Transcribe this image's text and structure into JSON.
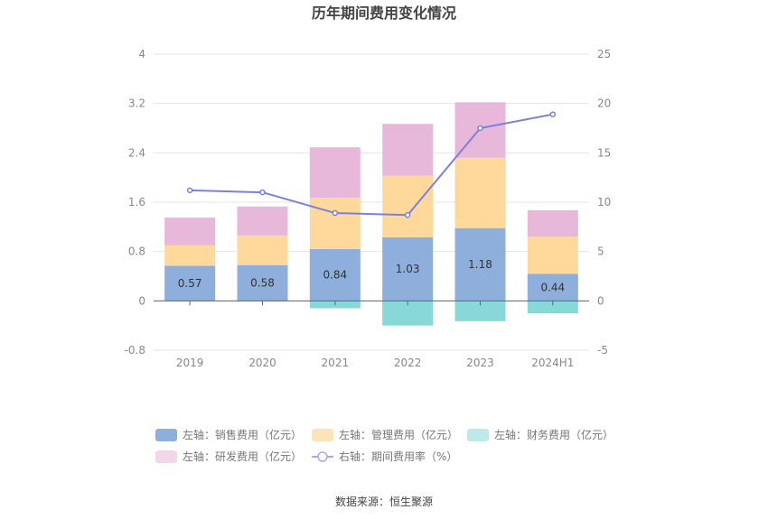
{
  "title": "历年期间费用变化情况",
  "source": "数据来源：恒生聚源",
  "chart_data": {
    "type": "bar",
    "stacked": true,
    "categories": [
      "2019",
      "2020",
      "2021",
      "2022",
      "2023",
      "2024H1"
    ],
    "series": [
      {
        "name": "左轴：销售费用（亿元）",
        "axis": "left",
        "color": "#8eaedb",
        "values": [
          0.57,
          0.58,
          0.84,
          1.03,
          1.18,
          0.44
        ],
        "labels": [
          "0.57",
          "0.58",
          "0.84",
          "1.03",
          "1.18",
          "0.44"
        ]
      },
      {
        "name": "左轴：管理费用（亿元）",
        "axis": "left",
        "color": "#ffd99b",
        "values": [
          0.33,
          0.48,
          0.83,
          1.0,
          1.14,
          0.6
        ]
      },
      {
        "name": "左轴：财务费用（亿元）",
        "axis": "left",
        "color": "#88d8d8",
        "values": [
          0,
          0,
          -0.12,
          -0.4,
          -0.33,
          -0.2
        ]
      },
      {
        "name": "左轴：研发费用（亿元）",
        "axis": "left",
        "color": "#e8b8da",
        "values": [
          0.45,
          0.47,
          0.82,
          0.84,
          0.9,
          0.43
        ]
      },
      {
        "name": "右轴：期间费用率（%）",
        "axis": "right",
        "type": "line",
        "color": "#7b7fe0",
        "values": [
          11.2,
          11.0,
          8.9,
          8.7,
          17.5,
          18.9
        ]
      }
    ],
    "y_left": {
      "min": -0.8,
      "max": 4,
      "ticks": [
        "-0.8",
        "0",
        "0.8",
        "1.6",
        "2.4",
        "3.2",
        "4"
      ]
    },
    "y_right": {
      "min": -5,
      "max": 25,
      "ticks": [
        "-5",
        "0",
        "5",
        "10",
        "15",
        "20",
        "25"
      ]
    },
    "grid": true,
    "legend_position": "bottom"
  },
  "legend_colors": {
    "sales": "#8eaedb",
    "admin": "#fce3b8",
    "finance": "#bde9e9",
    "rd": "#f2d6ea",
    "rate": "#a7aaf0"
  }
}
